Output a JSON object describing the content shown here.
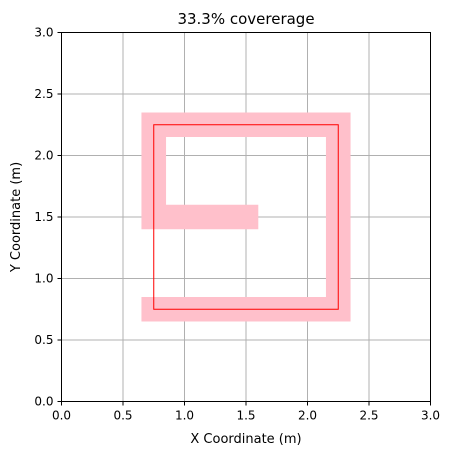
{
  "chart_data": {
    "type": "coverage-path",
    "title": "33.3% covererage",
    "xlabel": "X Coordinate (m)",
    "ylabel": "Y Coordinate (m)",
    "xlim": [
      0.0,
      3.0
    ],
    "ylim": [
      0.0,
      3.0
    ],
    "xticks": [
      "0.0",
      "0.5",
      "1.0",
      "1.5",
      "2.0",
      "2.5",
      "3.0"
    ],
    "yticks": [
      "0.0",
      "0.5",
      "1.0",
      "1.5",
      "2.0",
      "2.5",
      "3.0"
    ],
    "grid": true,
    "colors": {
      "coverage": "#ffc0cb",
      "boundary": "#ff0000",
      "grid": "#b0b0b0",
      "axes": "#000000"
    },
    "coverage_path": {
      "width_m": 0.2,
      "points": [
        [
          0.75,
          0.75
        ],
        [
          2.25,
          0.75
        ],
        [
          2.25,
          2.25
        ],
        [
          0.75,
          2.25
        ],
        [
          0.75,
          1.5
        ],
        [
          1.5,
          1.5
        ]
      ]
    },
    "boundary_rectangle": {
      "x_min": 0.75,
      "x_max": 2.25,
      "y_min": 0.75,
      "y_max": 2.25
    }
  }
}
